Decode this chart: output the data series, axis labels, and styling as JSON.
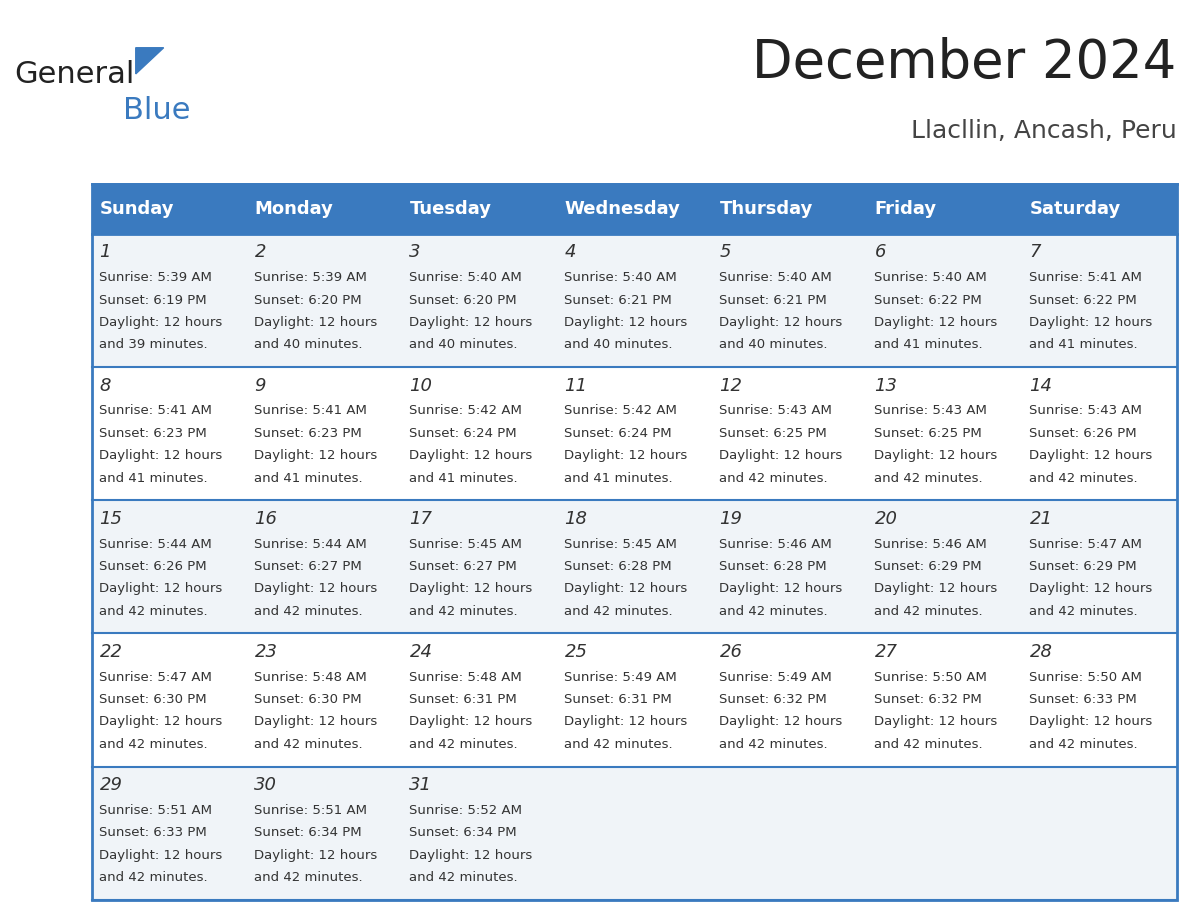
{
  "title": "December 2024",
  "subtitle": "Llacllin, Ancash, Peru",
  "header_bg_color": "#3a7abf",
  "header_text_color": "#ffffff",
  "row_bg_colors": [
    "#f0f4f8",
    "#ffffff"
  ],
  "border_color": "#3a7abf",
  "day_names": [
    "Sunday",
    "Monday",
    "Tuesday",
    "Wednesday",
    "Thursday",
    "Friday",
    "Saturday"
  ],
  "calendar": [
    [
      {
        "day": 1,
        "sunrise": "5:39 AM",
        "sunset": "6:19 PM",
        "daylight_hours": 12,
        "daylight_minutes": 39
      },
      {
        "day": 2,
        "sunrise": "5:39 AM",
        "sunset": "6:20 PM",
        "daylight_hours": 12,
        "daylight_minutes": 40
      },
      {
        "day": 3,
        "sunrise": "5:40 AM",
        "sunset": "6:20 PM",
        "daylight_hours": 12,
        "daylight_minutes": 40
      },
      {
        "day": 4,
        "sunrise": "5:40 AM",
        "sunset": "6:21 PM",
        "daylight_hours": 12,
        "daylight_minutes": 40
      },
      {
        "day": 5,
        "sunrise": "5:40 AM",
        "sunset": "6:21 PM",
        "daylight_hours": 12,
        "daylight_minutes": 40
      },
      {
        "day": 6,
        "sunrise": "5:40 AM",
        "sunset": "6:22 PM",
        "daylight_hours": 12,
        "daylight_minutes": 41
      },
      {
        "day": 7,
        "sunrise": "5:41 AM",
        "sunset": "6:22 PM",
        "daylight_hours": 12,
        "daylight_minutes": 41
      }
    ],
    [
      {
        "day": 8,
        "sunrise": "5:41 AM",
        "sunset": "6:23 PM",
        "daylight_hours": 12,
        "daylight_minutes": 41
      },
      {
        "day": 9,
        "sunrise": "5:41 AM",
        "sunset": "6:23 PM",
        "daylight_hours": 12,
        "daylight_minutes": 41
      },
      {
        "day": 10,
        "sunrise": "5:42 AM",
        "sunset": "6:24 PM",
        "daylight_hours": 12,
        "daylight_minutes": 41
      },
      {
        "day": 11,
        "sunrise": "5:42 AM",
        "sunset": "6:24 PM",
        "daylight_hours": 12,
        "daylight_minutes": 41
      },
      {
        "day": 12,
        "sunrise": "5:43 AM",
        "sunset": "6:25 PM",
        "daylight_hours": 12,
        "daylight_minutes": 42
      },
      {
        "day": 13,
        "sunrise": "5:43 AM",
        "sunset": "6:25 PM",
        "daylight_hours": 12,
        "daylight_minutes": 42
      },
      {
        "day": 14,
        "sunrise": "5:43 AM",
        "sunset": "6:26 PM",
        "daylight_hours": 12,
        "daylight_minutes": 42
      }
    ],
    [
      {
        "day": 15,
        "sunrise": "5:44 AM",
        "sunset": "6:26 PM",
        "daylight_hours": 12,
        "daylight_minutes": 42
      },
      {
        "day": 16,
        "sunrise": "5:44 AM",
        "sunset": "6:27 PM",
        "daylight_hours": 12,
        "daylight_minutes": 42
      },
      {
        "day": 17,
        "sunrise": "5:45 AM",
        "sunset": "6:27 PM",
        "daylight_hours": 12,
        "daylight_minutes": 42
      },
      {
        "day": 18,
        "sunrise": "5:45 AM",
        "sunset": "6:28 PM",
        "daylight_hours": 12,
        "daylight_minutes": 42
      },
      {
        "day": 19,
        "sunrise": "5:46 AM",
        "sunset": "6:28 PM",
        "daylight_hours": 12,
        "daylight_minutes": 42
      },
      {
        "day": 20,
        "sunrise": "5:46 AM",
        "sunset": "6:29 PM",
        "daylight_hours": 12,
        "daylight_minutes": 42
      },
      {
        "day": 21,
        "sunrise": "5:47 AM",
        "sunset": "6:29 PM",
        "daylight_hours": 12,
        "daylight_minutes": 42
      }
    ],
    [
      {
        "day": 22,
        "sunrise": "5:47 AM",
        "sunset": "6:30 PM",
        "daylight_hours": 12,
        "daylight_minutes": 42
      },
      {
        "day": 23,
        "sunrise": "5:48 AM",
        "sunset": "6:30 PM",
        "daylight_hours": 12,
        "daylight_minutes": 42
      },
      {
        "day": 24,
        "sunrise": "5:48 AM",
        "sunset": "6:31 PM",
        "daylight_hours": 12,
        "daylight_minutes": 42
      },
      {
        "day": 25,
        "sunrise": "5:49 AM",
        "sunset": "6:31 PM",
        "daylight_hours": 12,
        "daylight_minutes": 42
      },
      {
        "day": 26,
        "sunrise": "5:49 AM",
        "sunset": "6:32 PM",
        "daylight_hours": 12,
        "daylight_minutes": 42
      },
      {
        "day": 27,
        "sunrise": "5:50 AM",
        "sunset": "6:32 PM",
        "daylight_hours": 12,
        "daylight_minutes": 42
      },
      {
        "day": 28,
        "sunrise": "5:50 AM",
        "sunset": "6:33 PM",
        "daylight_hours": 12,
        "daylight_minutes": 42
      }
    ],
    [
      {
        "day": 29,
        "sunrise": "5:51 AM",
        "sunset": "6:33 PM",
        "daylight_hours": 12,
        "daylight_minutes": 42
      },
      {
        "day": 30,
        "sunrise": "5:51 AM",
        "sunset": "6:34 PM",
        "daylight_hours": 12,
        "daylight_minutes": 42
      },
      {
        "day": 31,
        "sunrise": "5:52 AM",
        "sunset": "6:34 PM",
        "daylight_hours": 12,
        "daylight_minutes": 42
      },
      null,
      null,
      null,
      null
    ]
  ],
  "logo_text_general": "General",
  "logo_text_blue": "Blue",
  "background_color": "#ffffff",
  "day_number_color": "#333333",
  "info_text_color": "#333333",
  "title_color": "#222222",
  "subtitle_color": "#444444"
}
